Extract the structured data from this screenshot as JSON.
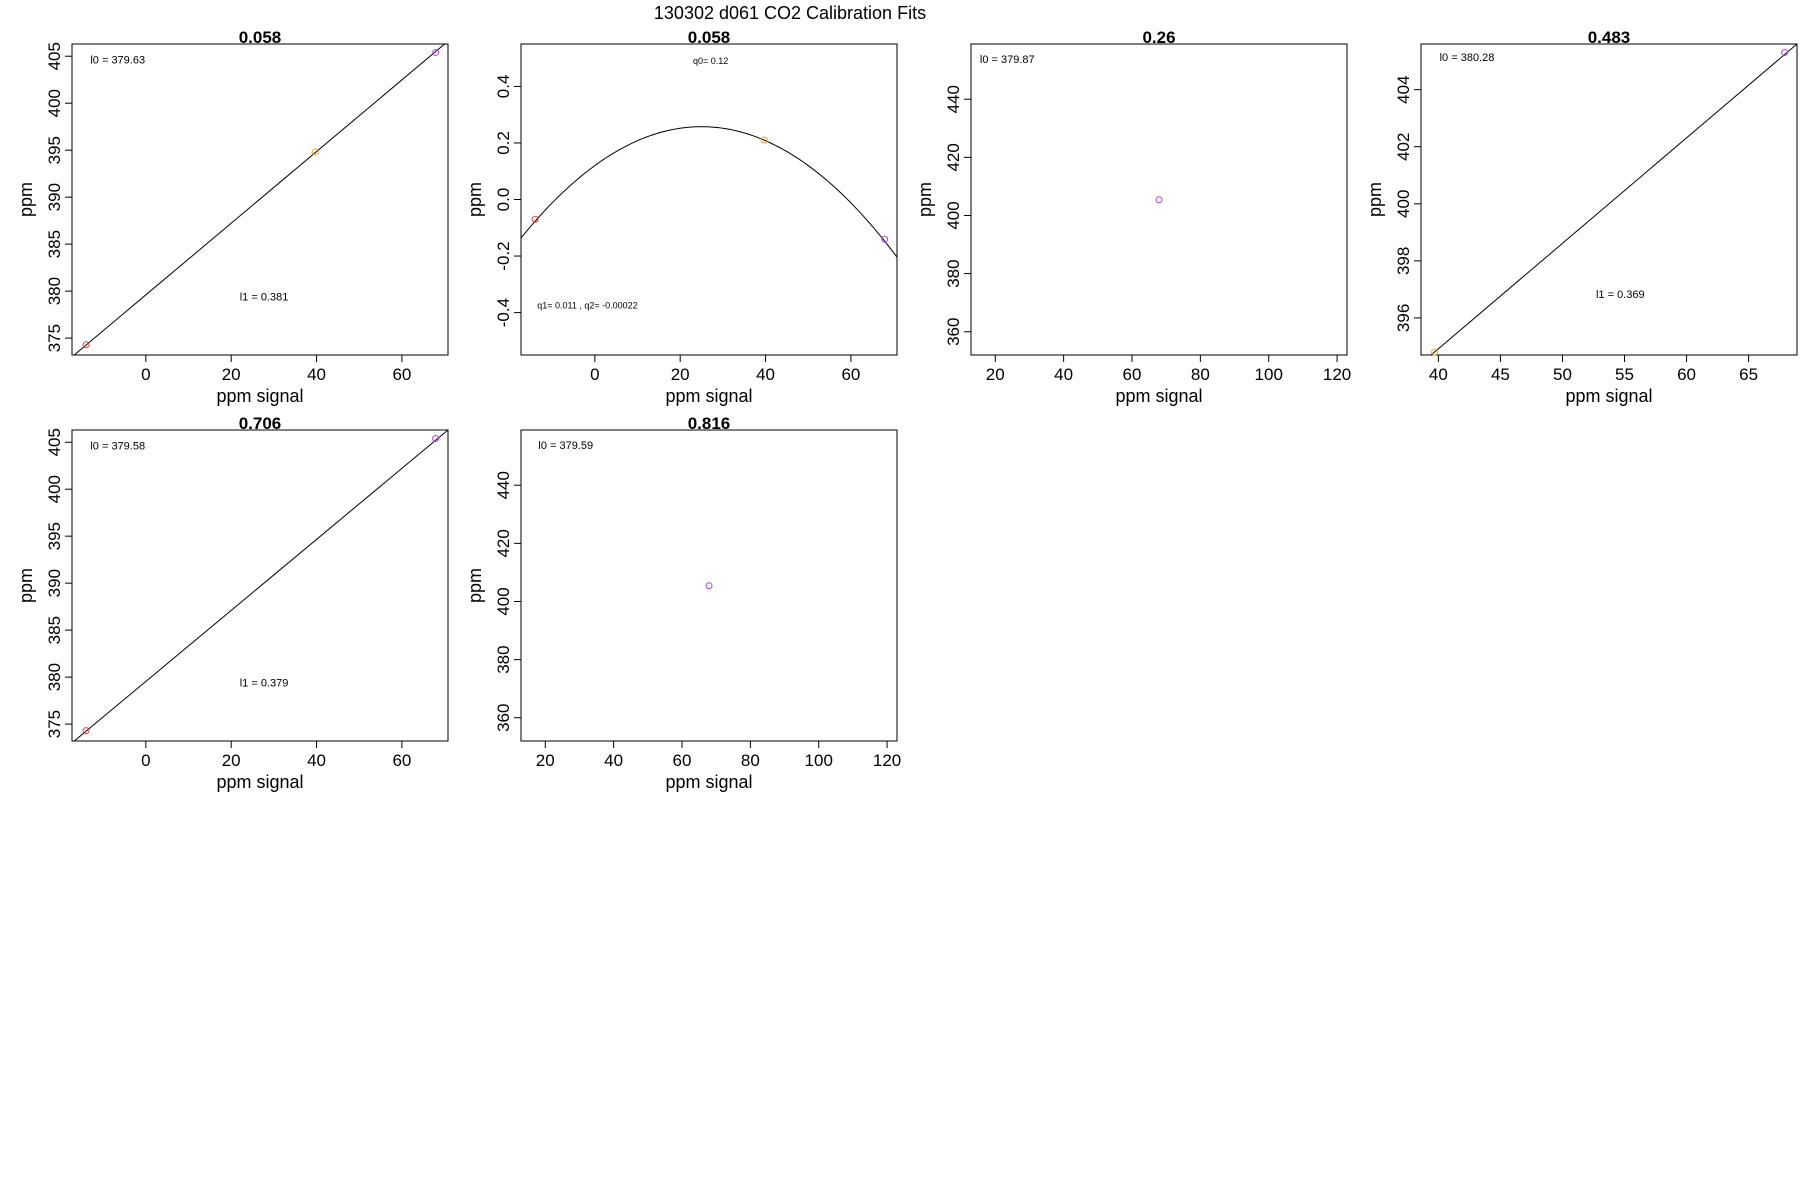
{
  "suptitle": "130302   d061   CO2 Calibration Fits",
  "colors": {
    "frame": "#000000",
    "line": "#000000",
    "red": "#e8413a",
    "orange": "#f0a030",
    "purple": "#b040e0"
  },
  "chart_data": [
    {
      "type": "scatter",
      "title": "0.058",
      "xlabel": "ppm signal",
      "ylabel": "ppm",
      "xlim": [
        -17.3,
        70.8
      ],
      "ylim": [
        373.2,
        406.3
      ],
      "xticks": [
        0,
        20,
        40,
        60
      ],
      "yticks": [
        375,
        380,
        385,
        390,
        395,
        400,
        405
      ],
      "points": [
        {
          "x": -14,
          "y": 374.3,
          "color": "red"
        },
        {
          "x": 39.7,
          "y": 394.8,
          "color": "orange"
        },
        {
          "x": 67.9,
          "y": 405.4,
          "color": "purple"
        }
      ],
      "fit": {
        "kind": "linear",
        "x": [
          -17.3,
          70.8
        ],
        "y": [
          373.0,
          406.6
        ]
      },
      "annotations": [
        {
          "text": "l0 =  379.63",
          "x": -13,
          "y": 404.2
        },
        {
          "text": "l1 =  0.381",
          "x": 22,
          "y": 379.0
        }
      ]
    },
    {
      "type": "scatter",
      "title": "0.058",
      "xlabel": "ppm signal",
      "ylabel": "ppm",
      "xlim": [
        -17.3,
        70.8
      ],
      "ylim": [
        -0.55,
        0.55
      ],
      "xticks": [
        0,
        20,
        40,
        60
      ],
      "yticks": [
        -0.4,
        -0.2,
        0.0,
        0.2,
        0.4
      ],
      "ytick_labels": [
        "-0.4",
        "-0.2",
        "0.0",
        "0.2",
        "0.4"
      ],
      "points": [
        {
          "x": -14,
          "y": -0.07,
          "color": "red"
        },
        {
          "x": 39.7,
          "y": 0.21,
          "color": "orange"
        },
        {
          "x": 67.9,
          "y": -0.14,
          "color": "purple"
        }
      ],
      "fit": {
        "kind": "quadratic",
        "q0": 0.12,
        "q1": 0.011,
        "q2": -0.00022
      },
      "annotations": [
        {
          "text": "q0= 0.12",
          "x": 23,
          "y": 0.48,
          "small": true
        },
        {
          "text": "q1= 0.011 , q2= -0.00022",
          "x": -13.5,
          "y": -0.385,
          "small": true
        }
      ]
    },
    {
      "type": "scatter",
      "title": "0.26",
      "xlabel": "ppm signal",
      "ylabel": "ppm",
      "xlim": [
        12.9,
        122.9
      ],
      "ylim": [
        352,
        459
      ],
      "xticks": [
        20,
        40,
        60,
        80,
        100,
        120
      ],
      "yticks": [
        360,
        380,
        400,
        420,
        440
      ],
      "points": [
        {
          "x": 67.9,
          "y": 405.4,
          "color": "purple"
        }
      ],
      "annotations": [
        {
          "text": "l0 =  379.87",
          "x": 15.5,
          "y": 452.5
        }
      ]
    },
    {
      "type": "scatter",
      "title": "0.483",
      "xlabel": "ppm signal",
      "ylabel": "ppm",
      "xlim": [
        38.6,
        68.9
      ],
      "ylim": [
        394.7,
        405.6
      ],
      "xticks": [
        40,
        45,
        50,
        55,
        60,
        65
      ],
      "yticks": [
        396,
        398,
        400,
        402,
        404
      ],
      "points": [
        {
          "x": 39.7,
          "y": 394.8,
          "color": "orange"
        },
        {
          "x": 67.9,
          "y": 405.3,
          "color": "purple"
        }
      ],
      "fit": {
        "kind": "linear",
        "x": [
          38.6,
          68.9
        ],
        "y": [
          394.4,
          405.6
        ]
      },
      "annotations": [
        {
          "text": "l0 =  380.28",
          "x": 40.1,
          "y": 405.0
        },
        {
          "text": "l1 =  0.369",
          "x": 52.7,
          "y": 396.7
        }
      ]
    },
    {
      "type": "scatter",
      "title": "0.706",
      "xlabel": "ppm signal",
      "ylabel": "ppm",
      "xlim": [
        -17.3,
        70.8
      ],
      "ylim": [
        373.2,
        406.3
      ],
      "xticks": [
        0,
        20,
        40,
        60
      ],
      "yticks": [
        375,
        380,
        385,
        390,
        395,
        400,
        405
      ],
      "points": [
        {
          "x": -14,
          "y": 374.3,
          "color": "red"
        },
        {
          "x": 67.9,
          "y": 405.4,
          "color": "purple"
        }
      ],
      "fit": {
        "kind": "linear",
        "x": [
          -17.3,
          70.8
        ],
        "y": [
          373.0,
          406.3
        ]
      },
      "annotations": [
        {
          "text": "l0 =  379.58",
          "x": -13,
          "y": 404.2
        },
        {
          "text": "l1 =  0.379",
          "x": 22,
          "y": 379.0
        }
      ]
    },
    {
      "type": "scatter",
      "title": "0.816",
      "xlabel": "ppm signal",
      "ylabel": "ppm",
      "xlim": [
        12.9,
        122.9
      ],
      "ylim": [
        352,
        459
      ],
      "xticks": [
        20,
        40,
        60,
        80,
        100,
        120
      ],
      "yticks": [
        360,
        380,
        400,
        420,
        440
      ],
      "points": [
        {
          "x": 67.9,
          "y": 405.4,
          "color": "purple"
        }
      ],
      "annotations": [
        {
          "text": "l0 =  379.59",
          "x": 18,
          "y": 452.5
        }
      ]
    }
  ]
}
